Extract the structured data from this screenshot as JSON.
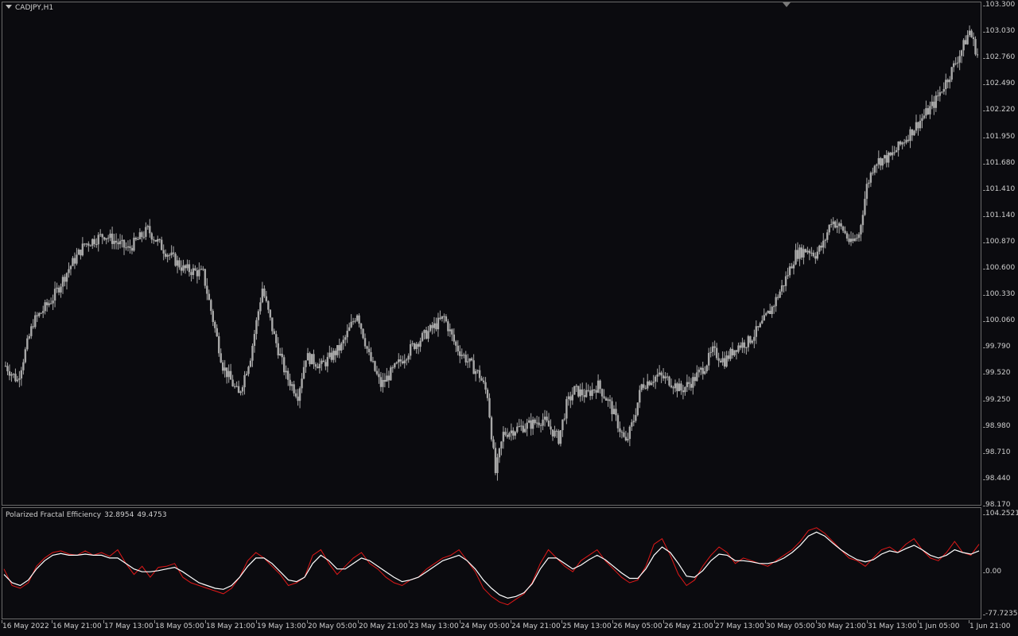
{
  "symbol_label": "CADJPY,H1",
  "indicator": {
    "name": "Polarized Fractal Efficiency",
    "value1": "32.8954",
    "value2": "49.4753"
  },
  "colors": {
    "background": "#0b0b0f",
    "candles": "#a9a9a9",
    "pfe_line": "#e01818",
    "signal_line": "#ffffff",
    "axis_text": "#cfcfcf"
  },
  "price_axis": [
    "103.300",
    "103.030",
    "102.760",
    "102.490",
    "102.220",
    "101.950",
    "101.680",
    "101.410",
    "101.140",
    "100.870",
    "100.600",
    "100.330",
    "100.060",
    "99.790",
    "99.520",
    "99.250",
    "98.980",
    "98.710",
    "98.440",
    "98.170"
  ],
  "indicator_axis": [
    "104.2521",
    "0.00",
    "-77.7235"
  ],
  "time_axis": [
    "16 May 2022",
    "16 May 21:00",
    "17 May 13:00",
    "18 May 05:00",
    "18 May 21:00",
    "19 May 13:00",
    "20 May 05:00",
    "20 May 21:00",
    "23 May 13:00",
    "24 May 05:00",
    "24 May 21:00",
    "25 May 13:00",
    "26 May 05:00",
    "26 May 21:00",
    "27 May 13:00",
    "30 May 05:00",
    "30 May 21:00",
    "31 May 13:00",
    "1 Jun 05:00",
    "1 Jun 21:00"
  ],
  "chart_data": [
    {
      "type": "candlestick",
      "title": "CADJPY,H1",
      "ylim": [
        98.17,
        103.3
      ],
      "bars": 300,
      "close_path": [
        [
          0,
          99.6
        ],
        [
          6,
          99.45
        ],
        [
          14,
          100.05
        ],
        [
          24,
          100.3
        ],
        [
          32,
          100.6
        ],
        [
          40,
          100.85
        ],
        [
          50,
          100.95
        ],
        [
          62,
          100.8
        ],
        [
          72,
          101.0
        ],
        [
          80,
          100.8
        ],
        [
          90,
          100.6
        ],
        [
          100,
          100.55
        ],
        [
          110,
          99.6
        ],
        [
          118,
          99.3
        ],
        [
          124,
          99.7
        ],
        [
          130,
          100.4
        ],
        [
          136,
          99.9
        ],
        [
          142,
          99.5
        ],
        [
          148,
          99.3
        ],
        [
          152,
          99.7
        ],
        [
          160,
          99.6
        ],
        [
          170,
          99.8
        ],
        [
          178,
          100.15
        ],
        [
          184,
          99.7
        ],
        [
          190,
          99.4
        ],
        [
          196,
          99.55
        ],
        [
          206,
          99.8
        ],
        [
          214,
          99.95
        ],
        [
          222,
          100.1
        ],
        [
          228,
          99.8
        ],
        [
          234,
          99.65
        ],
        [
          240,
          99.5
        ],
        [
          244,
          99.3
        ],
        [
          248,
          98.5
        ],
        [
          252,
          98.9
        ],
        [
          258,
          98.95
        ],
        [
          266,
          99.0
        ],
        [
          272,
          99.05
        ],
        [
          276,
          98.95
        ],
        [
          280,
          98.85
        ],
        [
          284,
          99.2
        ],
        [
          288,
          99.35
        ],
        [
          294,
          99.3
        ],
        [
          300,
          99.4
        ],
        [
          306,
          99.2
        ],
        [
          310,
          99.0
        ],
        [
          314,
          98.8
        ],
        [
          318,
          99.05
        ],
        [
          322,
          99.4
        ],
        [
          330,
          99.5
        ],
        [
          336,
          99.45
        ],
        [
          342,
          99.35
        ],
        [
          348,
          99.45
        ],
        [
          354,
          99.6
        ],
        [
          358,
          99.75
        ],
        [
          364,
          99.65
        ],
        [
          370,
          99.8
        ],
        [
          376,
          99.85
        ],
        [
          382,
          100.0
        ],
        [
          388,
          100.2
        ],
        [
          394,
          100.45
        ],
        [
          400,
          100.75
        ],
        [
          406,
          100.8
        ],
        [
          410,
          100.75
        ],
        [
          414,
          100.85
        ],
        [
          418,
          101.1
        ],
        [
          424,
          101.0
        ],
        [
          428,
          100.85
        ],
        [
          432,
          100.95
        ],
        [
          436,
          101.45
        ],
        [
          440,
          101.7
        ],
        [
          448,
          101.75
        ],
        [
          454,
          101.9
        ],
        [
          462,
          102.1
        ],
        [
          470,
          102.3
        ],
        [
          478,
          102.6
        ],
        [
          484,
          102.85
        ],
        [
          488,
          103.05
        ],
        [
          492,
          102.8
        ]
      ],
      "series_color": "#a9a9a9"
    },
    {
      "type": "line",
      "title": "Polarized Fractal Efficiency 32.8954 49.4753",
      "ylim": [
        -77.7235,
        104.2521
      ],
      "series": [
        {
          "color": "#e01818",
          "values": [
            5,
            -25,
            -30,
            -20,
            10,
            25,
            35,
            38,
            32,
            30,
            38,
            30,
            35,
            28,
            40,
            15,
            -5,
            10,
            -10,
            8,
            10,
            15,
            -10,
            -20,
            -25,
            -30,
            -35,
            -40,
            -30,
            -10,
            20,
            35,
            25,
            10,
            -5,
            -25,
            -20,
            -10,
            30,
            40,
            15,
            -5,
            10,
            25,
            35,
            15,
            5,
            -10,
            -20,
            -25,
            -15,
            -10,
            5,
            15,
            25,
            30,
            40,
            20,
            0,
            -30,
            -45,
            -55,
            -60,
            -50,
            -40,
            -20,
            15,
            40,
            25,
            10,
            0,
            20,
            30,
            40,
            20,
            5,
            -10,
            -20,
            -15,
            10,
            50,
            60,
            30,
            -5,
            -25,
            -15,
            10,
            30,
            45,
            35,
            15,
            25,
            20,
            15,
            10,
            20,
            30,
            40,
            55,
            75,
            80,
            70,
            55,
            40,
            25,
            20,
            10,
            25,
            40,
            45,
            35,
            50,
            60,
            40,
            25,
            20,
            35,
            55,
            35,
            30,
            50
          ]
        },
        {
          "color": "#ffffff",
          "values": [
            -5,
            -20,
            -25,
            -15,
            5,
            20,
            30,
            33,
            30,
            30,
            32,
            30,
            30,
            25,
            25,
            15,
            5,
            0,
            0,
            2,
            5,
            8,
            0,
            -10,
            -20,
            -25,
            -30,
            -32,
            -25,
            -10,
            10,
            25,
            25,
            15,
            0,
            -15,
            -18,
            -10,
            15,
            30,
            20,
            5,
            5,
            15,
            25,
            20,
            10,
            0,
            -10,
            -18,
            -15,
            -10,
            0,
            10,
            20,
            25,
            30,
            20,
            5,
            -15,
            -30,
            -42,
            -48,
            -45,
            -38,
            -22,
            5,
            25,
            25,
            15,
            5,
            12,
            22,
            30,
            22,
            10,
            -2,
            -12,
            -12,
            5,
            30,
            45,
            35,
            15,
            -8,
            -10,
            2,
            20,
            32,
            30,
            20,
            20,
            18,
            15,
            15,
            18,
            25,
            35,
            48,
            65,
            72,
            65,
            52,
            40,
            30,
            22,
            18,
            22,
            32,
            38,
            35,
            42,
            48,
            40,
            30,
            25,
            30,
            40,
            35,
            32,
            38
          ]
        }
      ]
    }
  ]
}
